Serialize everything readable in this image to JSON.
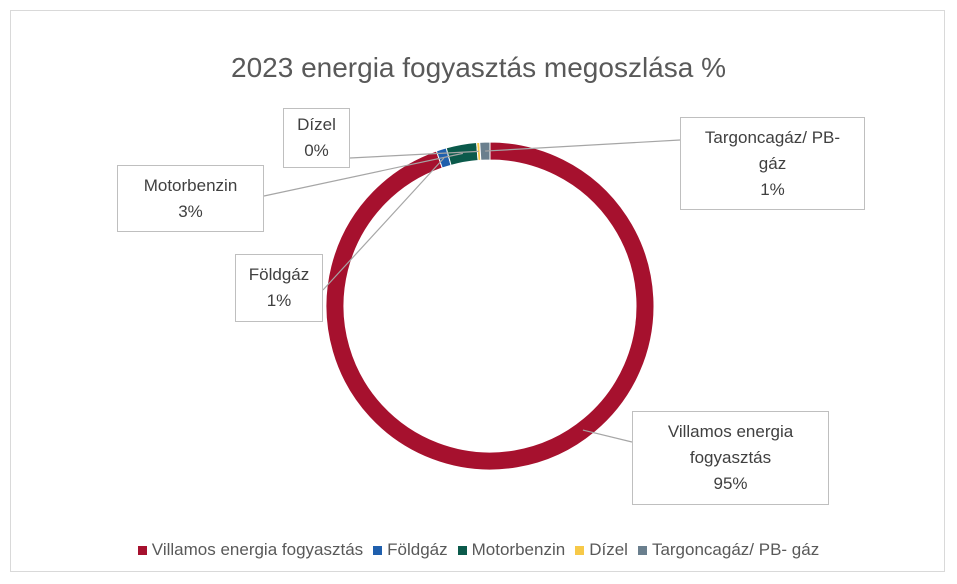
{
  "chart_data": {
    "type": "donut",
    "title": "2023 energia fogyasztás megoszlása %",
    "categories": [
      "Villamos energia fogyasztás",
      "Földgáz",
      "Motorbenzin",
      "Dízel",
      "Targoncagáz/ PB- gáz"
    ],
    "values": [
      94.7,
      1,
      3,
      0.3,
      1
    ],
    "value_labels": [
      "95%",
      "1%",
      "3%",
      "0%",
      "1%"
    ],
    "colors": [
      "#a6112e",
      "#1f5fad",
      "#0b5a4b",
      "#f7c948",
      "#6a7f8e"
    ],
    "legend": "bottom"
  }
}
